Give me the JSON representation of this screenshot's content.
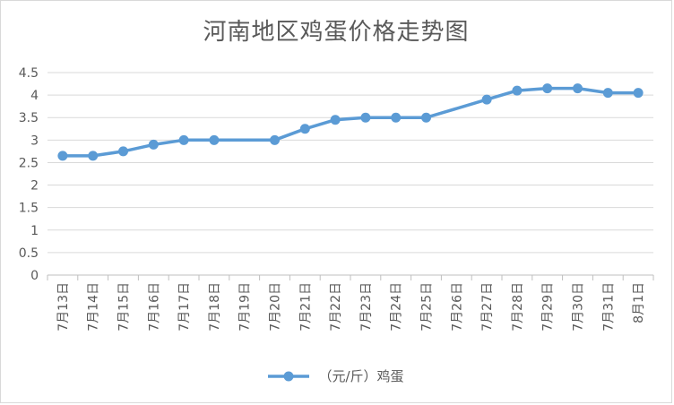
{
  "chart_data": {
    "type": "line",
    "title": "河南地区鸡蛋价格走势图",
    "xlabel": "",
    "ylabel": "",
    "ylim": [
      0,
      4.5
    ],
    "y_ticks": [
      "0",
      "0.5",
      "1",
      "1.5",
      "2",
      "2.5",
      "3",
      "3.5",
      "4",
      "4.5"
    ],
    "categories": [
      "7月13日",
      "7月14日",
      "7月15日",
      "7月16日",
      "7月17日",
      "7月18日",
      "7月19日",
      "7月20日",
      "7月21日",
      "7月22日",
      "7月23日",
      "7月24日",
      "7月25日",
      "7月26日",
      "7月27日",
      "7月28日",
      "7月29日",
      "7月30日",
      "7月31日",
      "8月1日"
    ],
    "series": [
      {
        "name": "（元/斤）鸡蛋",
        "color": "#5b9bd5",
        "values": [
          2.65,
          2.65,
          2.75,
          2.9,
          3.0,
          3.0,
          null,
          3.0,
          3.25,
          3.45,
          3.5,
          3.5,
          3.5,
          null,
          3.9,
          4.1,
          4.15,
          4.15,
          4.05,
          4.05
        ]
      }
    ],
    "grid": true,
    "legend_position": "bottom"
  }
}
